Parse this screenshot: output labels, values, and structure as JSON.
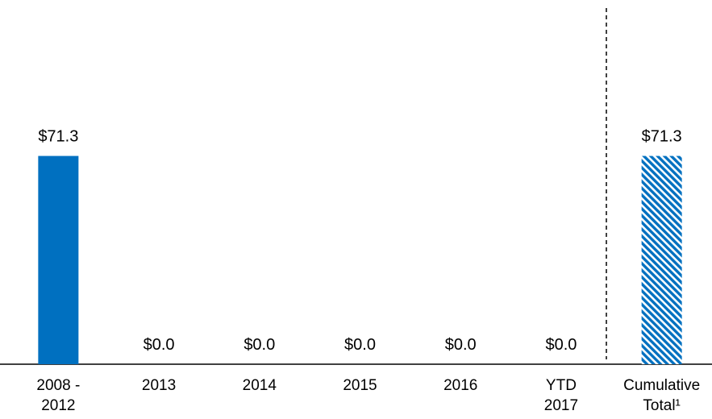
{
  "chart_data": {
    "type": "bar",
    "categories": [
      "2008 -\n2012",
      "2013",
      "2014",
      "2015",
      "2016",
      "YTD\n2017",
      "Cumulative\nTotal¹"
    ],
    "values": [
      71.3,
      0.0,
      0.0,
      0.0,
      0.0,
      0.0,
      71.3
    ],
    "value_labels": [
      "$71.3",
      "$0.0",
      "$0.0",
      "$0.0",
      "$0.0",
      "$0.0",
      "$71.3"
    ],
    "color": "#0070c0",
    "fill_styles": [
      "solid",
      "solid",
      "solid",
      "solid",
      "solid",
      "solid",
      "hatched"
    ],
    "ylim": [
      0,
      80
    ]
  }
}
